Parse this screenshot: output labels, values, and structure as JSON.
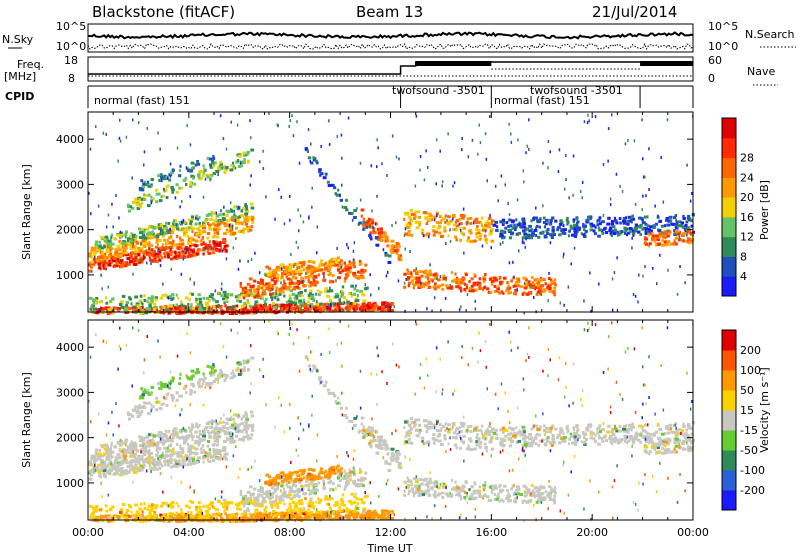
{
  "header": {
    "station": "Blackstone (fitACF)",
    "beam": "Beam 13",
    "date": "21/Jul/2014"
  },
  "noise_panel": {
    "left_label": "N.Sky",
    "left_ticks": [
      "10^5",
      "10^0"
    ],
    "right_ticks": [
      "10^5",
      "10^0"
    ],
    "right_label": "N.Search"
  },
  "freq_panel": {
    "left_label_line1": "Freq.",
    "left_label_line2": "[MHz]",
    "left_ticks": [
      "18",
      "8"
    ],
    "right_ticks": [
      "60",
      "0"
    ],
    "right_label": "Nave"
  },
  "cpid_panel": {
    "label": "CPID",
    "segments": [
      {
        "text": "normal (fast) 151",
        "start_hour": 0
      },
      {
        "text": "twofsound -3501",
        "start_hour": 12.5
      },
      {
        "text": "normal (fast) 151",
        "start_hour": 16.0
      },
      {
        "text": "twofsound -3501",
        "start_hour": 18.8
      }
    ],
    "boundaries_hour": [
      12.4,
      16.0,
      21.9
    ]
  },
  "chart_data": [
    {
      "type": "heatmap",
      "name": "power",
      "ylabel": "Slant Range [km]",
      "xlabel": "",
      "xlim_hours": [
        0,
        24
      ],
      "ylim": [
        180,
        4600
      ],
      "yticks": [
        1000,
        2000,
        3000,
        4000
      ],
      "colorbar": {
        "label": "Power [dB]",
        "ticks": [
          "4",
          "8",
          "12",
          "16",
          "20",
          "24",
          "28"
        ],
        "colors": [
          "#1a1aff",
          "#1f4fbf",
          "#2e8b57",
          "#66c266",
          "#f0d000",
          "#ff9900",
          "#ff6600",
          "#ff2a00",
          "#e00000"
        ]
      }
    },
    {
      "type": "heatmap",
      "name": "velocity",
      "ylabel": "Slant Range [km]",
      "xlabel": "Time UT",
      "xticks": [
        "00:00",
        "04:00",
        "08:00",
        "12:00",
        "16:00",
        "20:00",
        "00:00"
      ],
      "xlim_hours": [
        0,
        24
      ],
      "ylim": [
        180,
        4600
      ],
      "yticks": [
        1000,
        2000,
        3000,
        4000
      ],
      "colorbar": {
        "label": "Velocity [m s⁻¹]",
        "ticks": [
          "200",
          "100",
          "50",
          "15",
          "-15",
          "-50",
          "-100",
          "-200"
        ],
        "colors": [
          "#1a1aff",
          "#2b5fd9",
          "#2e8b57",
          "#66cc33",
          "#c8c8c0",
          "#ffd000",
          "#ff9900",
          "#ff5500",
          "#e00000"
        ]
      }
    }
  ]
}
